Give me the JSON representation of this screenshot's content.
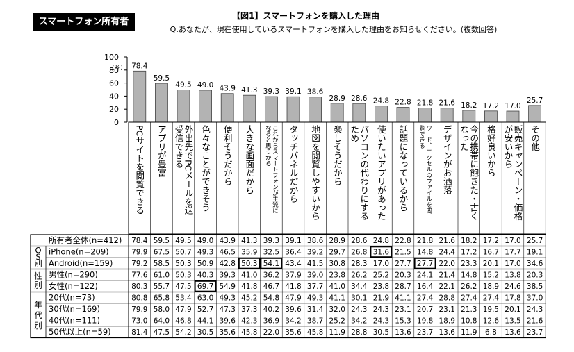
{
  "header": {
    "badge": "スマートフォン所有者",
    "title": "【図1】スマートフォンを購入した理由",
    "subtitle": "Q.あなたが、現在使用しているスマートフォンを購入した理由をお知らせください。(複数回答)"
  },
  "chart_data": {
    "type": "bar",
    "ylabel": "(%)",
    "ylim": [
      0,
      100
    ],
    "yticks": [
      0,
      20,
      40,
      60,
      80,
      100
    ],
    "categories": [
      "PCサイトを閲覧できる",
      "アプリが豊富",
      "外出先でPCメールを送受信できる",
      "色々なことができそう",
      "便利そうだから",
      "大きな画面だから",
      "これからスマートフォンが主流になると思うから",
      "タッチパネルだから",
      "地図を閲覧しやすいから",
      "楽しそうだから",
      "パソコンの代わりにするため",
      "使いたいアプリがあった",
      "話題になっているから",
      "ワード、エクセルのファイルを閲覧できる",
      "デザインがお洒落",
      "今の携帯に飽きた・古くなった",
      "格好良いから",
      "販売キャンペーン・価格が安いから",
      "その他"
    ],
    "values": [
      78.4,
      59.5,
      49.5,
      49.0,
      43.9,
      41.3,
      39.3,
      39.1,
      38.6,
      28.9,
      28.6,
      24.8,
      22.8,
      21.8,
      21.6,
      18.2,
      17.2,
      17.0,
      25.7
    ]
  },
  "table": {
    "group_labels": [
      "OS別",
      "性別",
      "年代別"
    ],
    "rows": [
      {
        "label": "所有者全体(n=412)",
        "values": [
          "78.4",
          "59.5",
          "49.5",
          "49.0",
          "43.9",
          "41.3",
          "39.3",
          "39.1",
          "38.6",
          "28.9",
          "28.6",
          "24.8",
          "22.8",
          "21.8",
          "21.6",
          "18.2",
          "17.2",
          "17.0",
          "25.7"
        ]
      },
      {
        "label": "iPhone(n=209)",
        "values": [
          "79.9",
          "67.5",
          "50.7",
          "49.3",
          "46.5",
          "35.9",
          "32.5",
          "36.4",
          "39.2",
          "29.7",
          "26.8",
          "31.6",
          "21.5",
          "14.8",
          "24.4",
          "17.2",
          "16.7",
          "17.7",
          "19.1"
        ]
      },
      {
        "label": "Android(n=159)",
        "values": [
          "79.2",
          "58.5",
          "50.3",
          "50.9",
          "42.8",
          "50.3",
          "54.1",
          "43.4",
          "41.5",
          "30.8",
          "28.3",
          "17.0",
          "27.7",
          "27.7",
          "22.0",
          "23.3",
          "20.1",
          "17.0",
          "34.6"
        ]
      },
      {
        "label": "男性(n=290)",
        "values": [
          "77.6",
          "61.0",
          "50.3",
          "40.3",
          "39.3",
          "41.0",
          "36.2",
          "37.9",
          "39.0",
          "23.8",
          "26.2",
          "25.2",
          "20.3",
          "24.1",
          "21.4",
          "14.8",
          "15.2",
          "13.8",
          "20.3"
        ]
      },
      {
        "label": "女性(n=122)",
        "values": [
          "80.3",
          "55.7",
          "47.5",
          "69.7",
          "54.9",
          "41.8",
          "46.7",
          "41.8",
          "37.7",
          "41.0",
          "34.4",
          "23.8",
          "28.7",
          "16.4",
          "22.1",
          "26.2",
          "18.9",
          "24.6",
          "38.5"
        ]
      },
      {
        "label": "20代(n=73)",
        "values": [
          "80.8",
          "65.8",
          "53.4",
          "63.0",
          "49.3",
          "45.2",
          "54.8",
          "47.9",
          "49.3",
          "41.1",
          "30.1",
          "21.9",
          "41.1",
          "27.4",
          "28.8",
          "27.4",
          "27.4",
          "17.8",
          "37.0"
        ]
      },
      {
        "label": "30代(n=169)",
        "values": [
          "79.9",
          "58.0",
          "47.9",
          "52.7",
          "47.3",
          "37.3",
          "40.2",
          "39.6",
          "31.4",
          "32.0",
          "24.3",
          "24.3",
          "23.1",
          "20.7",
          "23.1",
          "21.3",
          "19.5",
          "20.1",
          "24.3"
        ]
      },
      {
        "label": "40代(n=111)",
        "values": [
          "73.0",
          "64.0",
          "46.8",
          "44.1",
          "39.6",
          "42.3",
          "36.9",
          "34.2",
          "38.7",
          "25.2",
          "34.2",
          "24.3",
          "15.3",
          "19.8",
          "18.9",
          "10.8",
          "12.6",
          "13.5",
          "21.6"
        ]
      },
      {
        "label": "50代以上(n=59)",
        "values": [
          "81.4",
          "47.5",
          "54.2",
          "30.5",
          "35.6",
          "45.8",
          "22.0",
          "35.6",
          "45.8",
          "11.9",
          "28.8",
          "30.5",
          "13.6",
          "23.7",
          "13.6",
          "11.9",
          "6.8",
          "13.6",
          "23.7"
        ]
      }
    ],
    "highlight_cells": [
      [
        1,
        11
      ],
      [
        2,
        5
      ],
      [
        2,
        6
      ],
      [
        2,
        13
      ],
      [
        4,
        3
      ]
    ],
    "colors": {
      "bar_fill": "#b3b3b3",
      "bar_stroke": "#444444",
      "border": "#000000"
    }
  }
}
